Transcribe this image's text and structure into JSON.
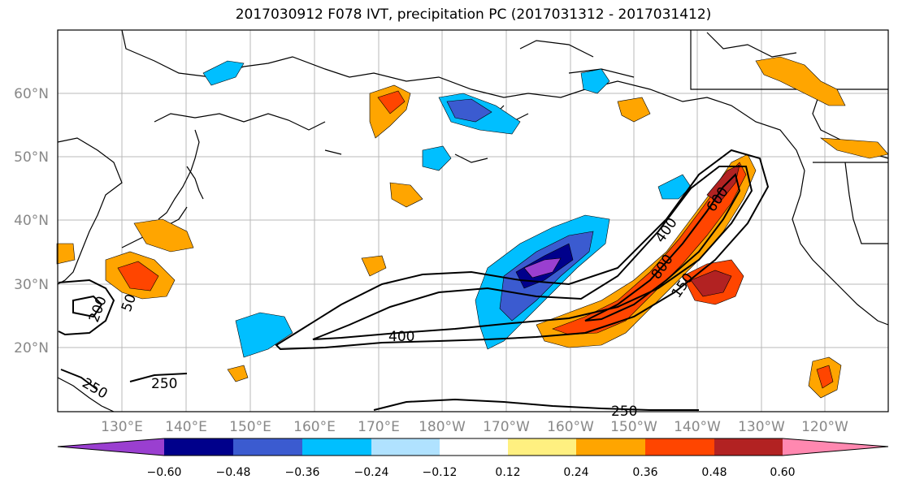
{
  "title": "2017030912 F078 IVT, precipitation PC (2017031312 - 2017031412)",
  "map": {
    "lat_labels": [
      "60°N",
      "50°N",
      "40°N",
      "30°N",
      "20°N"
    ],
    "lon_labels": [
      "130°E",
      "140°E",
      "150°E",
      "160°E",
      "170°E",
      "180°W",
      "170°W",
      "160°W",
      "150°W",
      "140°W",
      "130°W",
      "120°W"
    ],
    "contour_labels": [
      "400",
      "600",
      "800",
      "150",
      "400",
      "250",
      "250",
      "250",
      "200",
      "50"
    ]
  },
  "colorbar": {
    "ticks": [
      "−0.60",
      "−0.48",
      "−0.36",
      "−0.24",
      "−0.12",
      "0.12",
      "0.24",
      "0.36",
      "0.48",
      "0.60"
    ],
    "colors": [
      "#9a3fd0",
      "#00008b",
      "#3b5bd0",
      "#00bfff",
      "#b0e2ff",
      "#ffffff",
      "#fff080",
      "#ffa500",
      "#ff4500",
      "#b22222",
      "#ff88b0"
    ]
  },
  "colors": {
    "frame": "#000000",
    "grid": "#b0b0b0",
    "tick_text": "#888888"
  }
}
